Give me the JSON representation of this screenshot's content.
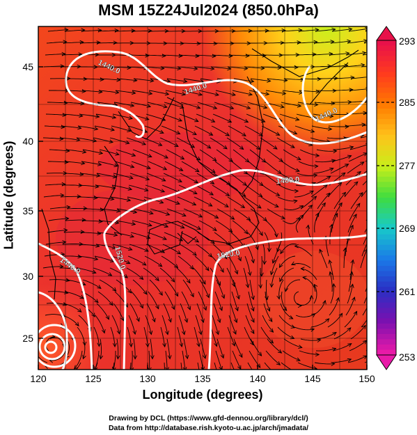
{
  "title": "MSM 15Z24Jul2024 (850.0hPa)",
  "axes": {
    "xlabel": "Longitude (degrees)",
    "ylabel": "Latitude  (degrees)",
    "x_ticks": [
      "120",
      "125",
      "130",
      "135",
      "140",
      "145",
      "150"
    ],
    "y_ticks": [
      "25",
      "30",
      "35",
      "40",
      "45"
    ]
  },
  "colorbar": {
    "tick_labels": [
      "293",
      "285",
      "277",
      "269",
      "261",
      "253"
    ],
    "colors": [
      "#e8114a",
      "#ff3b1e",
      "#ff7a00",
      "#ffc21a",
      "#c8ef1a",
      "#3fdc3f",
      "#18c9c9",
      "#1a7ae8",
      "#2a2fc4",
      "#7a10b0",
      "#e81aa8"
    ]
  },
  "contours": {
    "labels": [
      "1440.0",
      "1440.0",
      "1440.0",
      "1480.0",
      "1520.0",
      "1440.0",
      "1520.0"
    ]
  },
  "credits": {
    "line1": "Drawing by DCL (https://www.gfd-dennou.org/library/dcl/)",
    "line2": "Data from http://database.rish.kyoto-u.ac.jp/arch/jmadata/"
  }
}
